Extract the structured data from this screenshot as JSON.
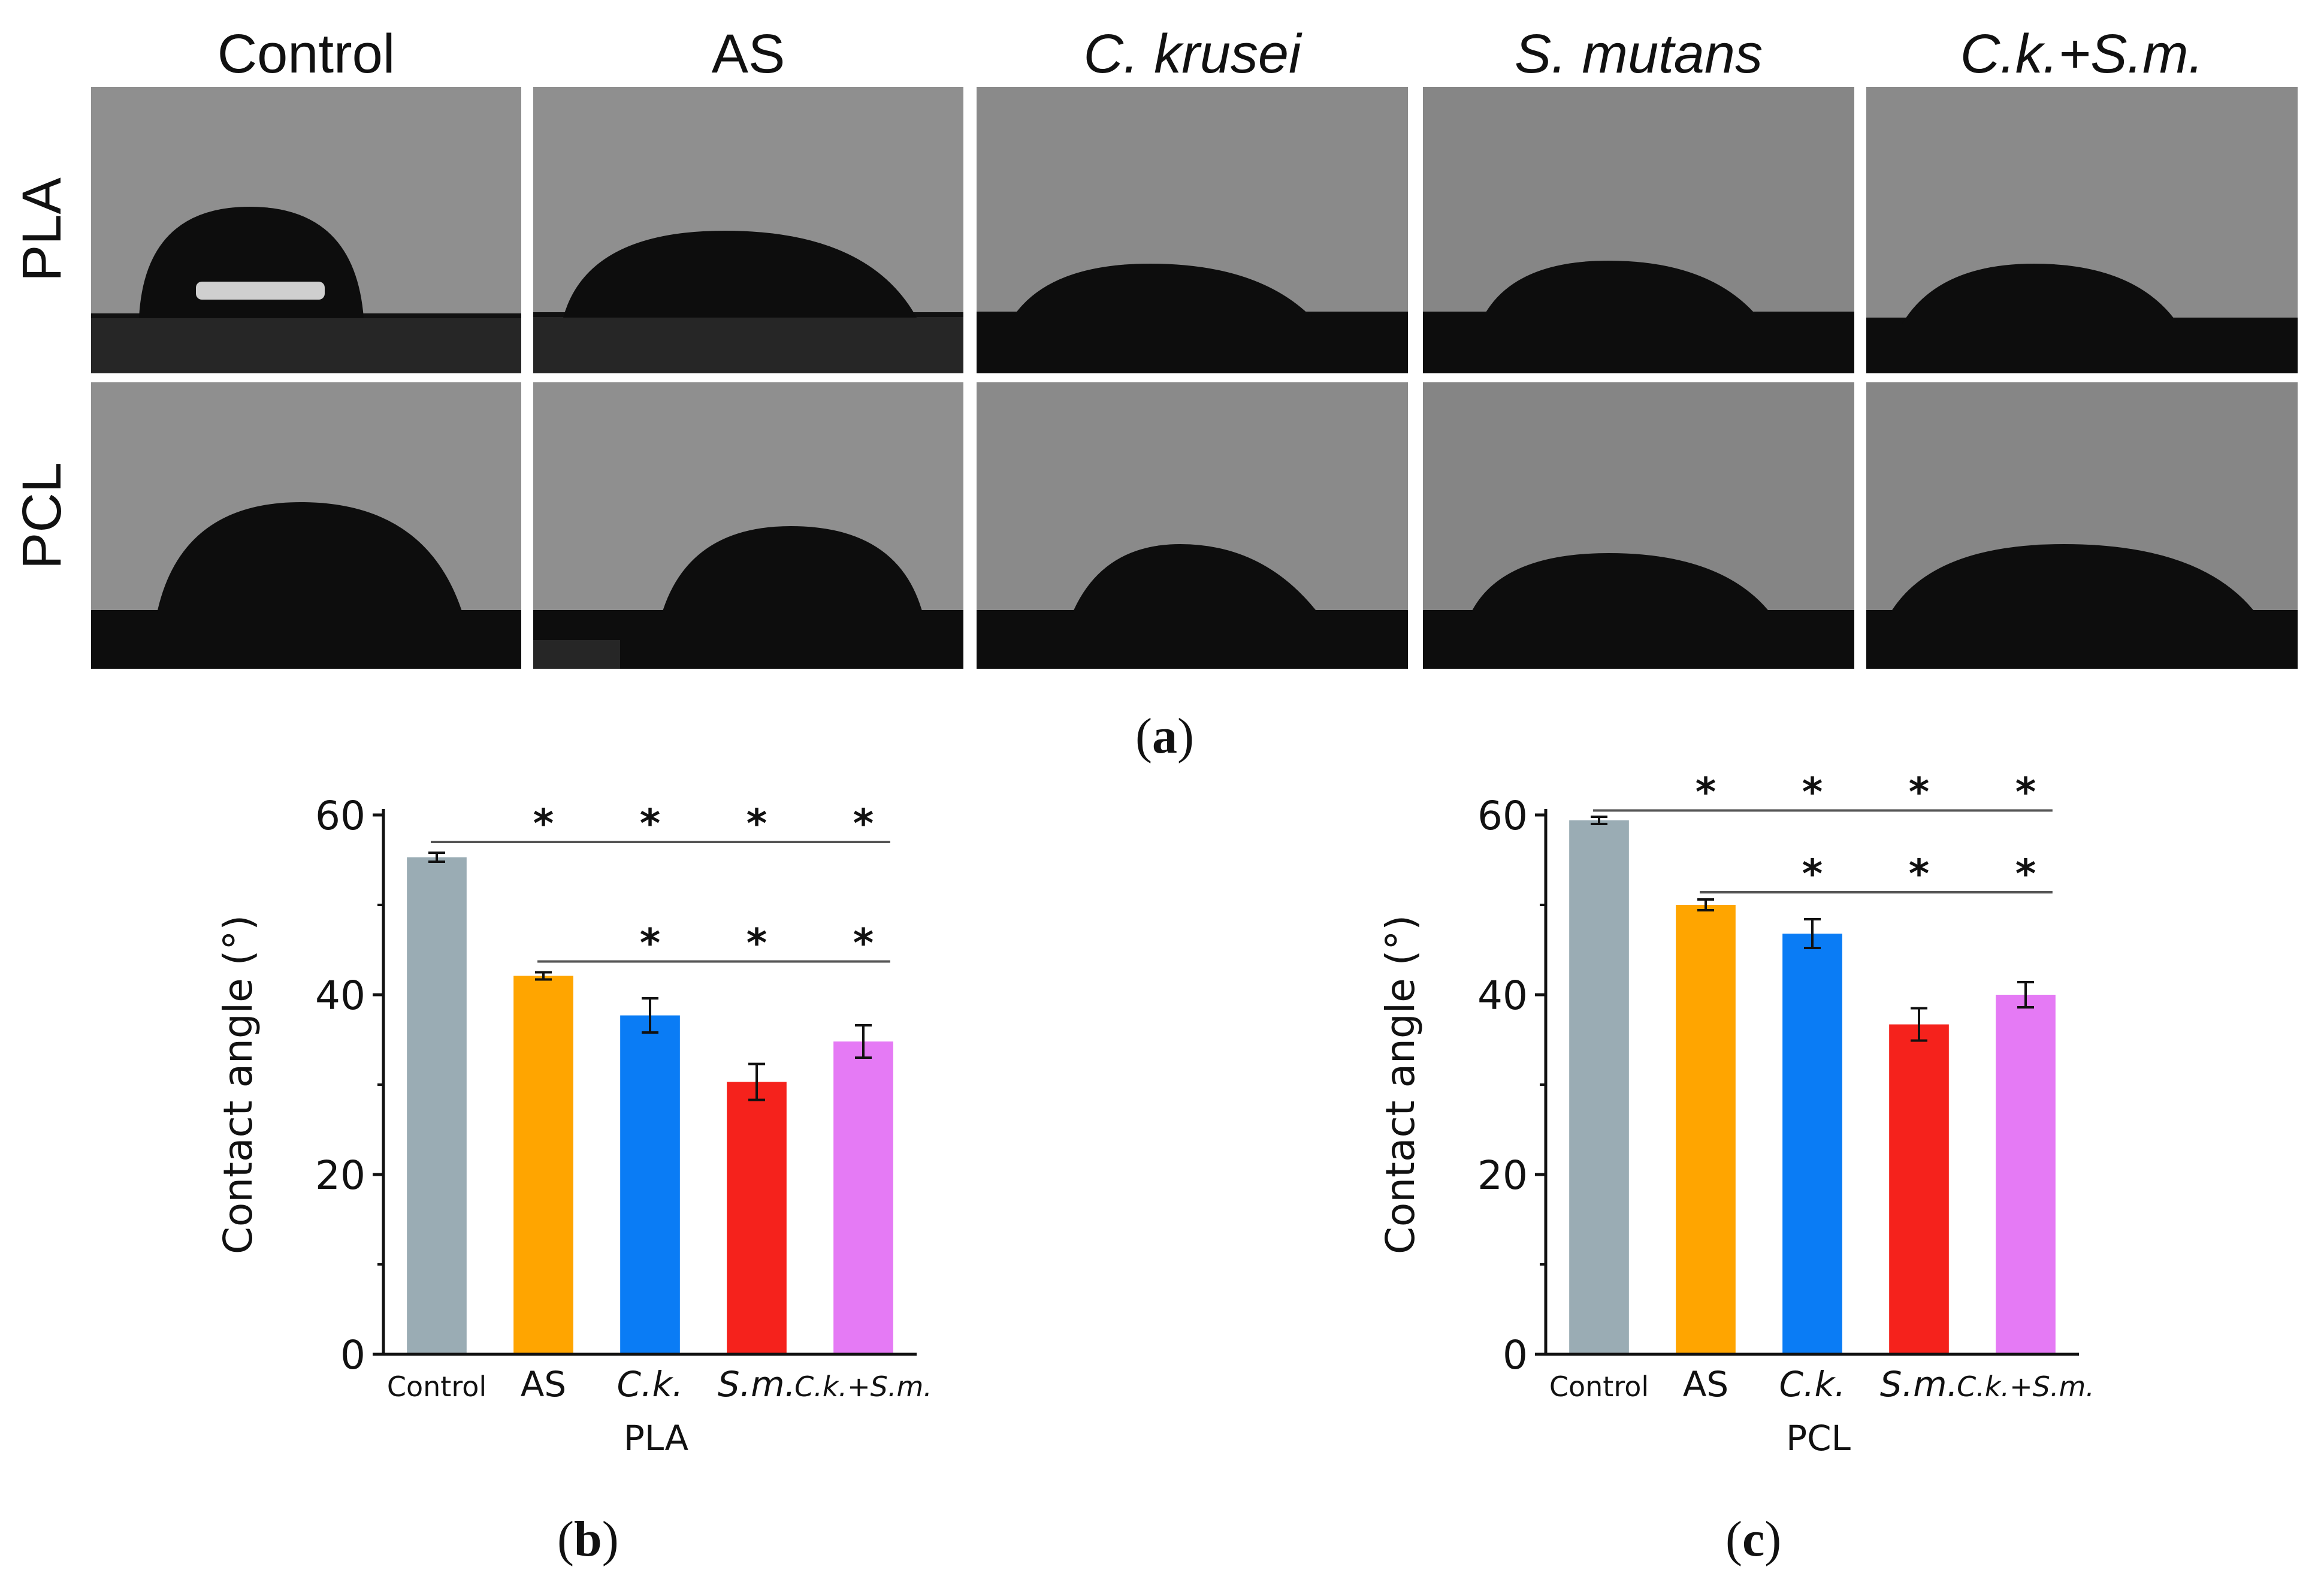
{
  "figure": {
    "columns": [
      "Control",
      "AS",
      "C. krusei",
      "S. mutans",
      "C.k.+S.m."
    ],
    "column_italic": [
      false,
      false,
      true,
      true,
      true
    ],
    "rows": [
      "PLA",
      "PCL"
    ],
    "panel_labels": {
      "a_open": "(",
      "a_letter": "a",
      "a_close": ")",
      "b_open": "(",
      "b_letter": "b",
      "b_close": ")",
      "c_open": "(",
      "c_letter": "c",
      "c_close": ")"
    }
  },
  "chart_data": [
    {
      "type": "bar",
      "id": "b",
      "title": "",
      "xlabel": "PLA",
      "ylabel": "Contact angle (°)",
      "ylim": [
        0,
        60
      ],
      "yticks": [
        0,
        20,
        40,
        60
      ],
      "categories": [
        "Control",
        "AS",
        "C.k.",
        "S.m.",
        "C.k.+S.m."
      ],
      "category_italic": [
        false,
        false,
        true,
        true,
        true
      ],
      "values": [
        55.3,
        42.1,
        37.7,
        30.3,
        34.8
      ],
      "errors": [
        0.5,
        0.4,
        1.9,
        2.0,
        1.8
      ],
      "colors": [
        "#9aacb4",
        "#ffa500",
        "#0a7cf5",
        "#f5221c",
        "#e57af5"
      ],
      "significance": [
        {
          "from": 0,
          "y": 57,
          "marks": [
            1,
            2,
            3,
            4
          ],
          "symbol": "*"
        },
        {
          "from": 1,
          "y": 43.7,
          "marks": [
            2,
            3,
            4
          ],
          "symbol": "*"
        }
      ]
    },
    {
      "type": "bar",
      "id": "c",
      "title": "",
      "xlabel": "PCL",
      "ylabel": "Contact angle (°)",
      "ylim": [
        0,
        60
      ],
      "yticks": [
        0,
        20,
        40,
        60
      ],
      "categories": [
        "Control",
        "AS",
        "C.k.",
        "S.m.",
        "C.k.+S.m."
      ],
      "category_italic": [
        false,
        false,
        true,
        true,
        true
      ],
      "values": [
        59.4,
        50.0,
        46.8,
        36.7,
        40.0
      ],
      "errors": [
        0.4,
        0.6,
        1.6,
        1.8,
        1.4
      ],
      "colors": [
        "#9aacb4",
        "#ffa500",
        "#0a7cf5",
        "#f5221c",
        "#e57af5"
      ],
      "significance": [
        {
          "from": 0,
          "y": 60.5,
          "marks": [
            1,
            2,
            3,
            4
          ],
          "symbol": "*"
        },
        {
          "from": 1,
          "y": 51.4,
          "marks": [
            2,
            3,
            4
          ],
          "symbol": "*"
        }
      ]
    }
  ]
}
